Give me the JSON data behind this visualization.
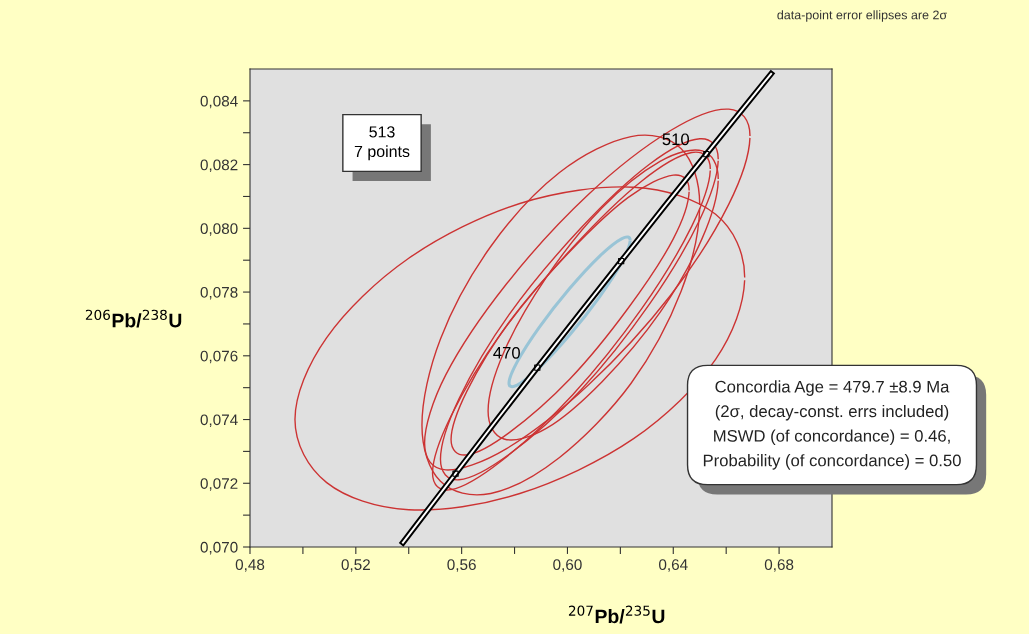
{
  "chart_data": {
    "type": "line",
    "xlabel": "$^{207}$Pb/$^{235}$U",
    "ylabel": "$^{206}$Pb/$^{238}$U",
    "xlim": [
      0.48,
      0.7
    ],
    "ylim": [
      0.07,
      0.085
    ],
    "xticks": [
      {
        "value": 0.48,
        "label": "0,48"
      },
      {
        "value": 0.5,
        "label": null
      },
      {
        "value": 0.52,
        "label": "0,52"
      },
      {
        "value": 0.54,
        "label": null
      },
      {
        "value": 0.56,
        "label": "0,56"
      },
      {
        "value": 0.58,
        "label": null
      },
      {
        "value": 0.6,
        "label": "0,60"
      },
      {
        "value": 0.62,
        "label": null
      },
      {
        "value": 0.64,
        "label": "0,64"
      },
      {
        "value": 0.66,
        "label": null
      },
      {
        "value": 0.68,
        "label": "0,68"
      }
    ],
    "yticks": [
      {
        "value": 0.07,
        "label": "0,070"
      },
      {
        "value": 0.071,
        "label": null
      },
      {
        "value": 0.072,
        "label": "0,072"
      },
      {
        "value": 0.073,
        "label": null
      },
      {
        "value": 0.074,
        "label": "0,074"
      },
      {
        "value": 0.075,
        "label": null
      },
      {
        "value": 0.076,
        "label": "0,076"
      },
      {
        "value": 0.077,
        "label": null
      },
      {
        "value": 0.078,
        "label": "0,078"
      },
      {
        "value": 0.079,
        "label": null
      },
      {
        "value": 0.08,
        "label": "0,080"
      },
      {
        "value": 0.081,
        "label": null
      },
      {
        "value": 0.082,
        "label": "0,082"
      },
      {
        "value": 0.083,
        "label": null
      },
      {
        "value": 0.084,
        "label": "0,084"
      }
    ],
    "series": [
      {
        "color": "#cc3333",
        "x": [
          0.667,
          0.656,
          0.625,
          0.582,
          0.54,
          0.509,
          0.497,
          0.509,
          0.54,
          0.582,
          0.625,
          0.656
        ],
        "values": [
          0.07846,
          0.08044,
          0.08129,
          0.08078,
          0.07906,
          0.07657,
          0.074,
          0.07202,
          0.07117,
          0.07168,
          0.0734,
          0.07589
        ]
      },
      {
        "color": "#cc3333",
        "x": [
          0.669,
          0.661,
          0.639,
          0.608,
          0.577,
          0.554,
          0.546,
          0.554,
          0.577,
          0.608,
          0.639,
          0.661
        ],
        "values": [
          0.0829,
          0.08374,
          0.08307,
          0.08107,
          0.07826,
          0.0754,
          0.07326,
          0.07242,
          0.07309,
          0.07509,
          0.0779,
          0.08076
        ]
      },
      {
        "color": "#cc3333",
        "x": [
          0.65,
          0.643,
          0.624,
          0.597,
          0.571,
          0.552,
          0.545,
          0.552,
          0.571,
          0.597,
          0.624,
          0.643
        ],
        "values": [
          0.08073,
          0.0825,
          0.08288,
          0.08175,
          0.07943,
          0.07653,
          0.07383,
          0.07206,
          0.07168,
          0.07281,
          0.07513,
          0.07803
        ]
      },
      {
        "color": "#cc3333",
        "x": [
          0.657,
          0.65,
          0.631,
          0.605,
          0.578,
          0.559,
          0.552,
          0.559,
          0.578,
          0.605,
          0.631,
          0.65
        ],
        "values": [
          0.08217,
          0.08281,
          0.08201,
          0.08,
          0.0773,
          0.07465,
          0.07275,
          0.07211,
          0.07291,
          0.07492,
          0.07762,
          0.08027
        ]
      },
      {
        "color": "#cc3333",
        "x": [
          0.646,
          0.64,
          0.623,
          0.601,
          0.578,
          0.562,
          0.556,
          0.562,
          0.578,
          0.601,
          0.623,
          0.64
        ],
        "values": [
          0.08119,
          0.08167,
          0.08097,
          0.07928,
          0.07706,
          0.07489,
          0.07337,
          0.07289,
          0.07359,
          0.07528,
          0.0775,
          0.07967
        ]
      },
      {
        "color": "#cc3333",
        "x": [
          0.654,
          0.647,
          0.628,
          0.602,
          0.575,
          0.556,
          0.549,
          0.556,
          0.575,
          0.602,
          0.628,
          0.647
        ],
        "values": [
          0.08186,
          0.08238,
          0.08148,
          0.0794,
          0.07671,
          0.07411,
          0.07232,
          0.0718,
          0.0727,
          0.07478,
          0.07747,
          0.08007
        ]
      },
      {
        "color": "#cc3333",
        "x": [
          0.657,
          0.651,
          0.635,
          0.613,
          0.592,
          0.576,
          0.57,
          0.576,
          0.592,
          0.613,
          0.635,
          0.651
        ],
        "values": [
          0.08155,
          0.08243,
          0.0821,
          0.08064,
          0.07846,
          0.07612,
          0.07427,
          0.07339,
          0.07372,
          0.07518,
          0.07736,
          0.0797
        ]
      },
      {
        "color": "#99c4d6",
        "x": [
          0.6237,
          0.6206,
          0.6122,
          0.6008,
          0.5894,
          0.581,
          0.5779,
          0.581,
          0.5894,
          0.6008,
          0.6122,
          0.6206
        ],
        "values": [
          0.07962,
          0.07968,
          0.07913,
          0.07811,
          0.0769,
          0.07581,
          0.07514,
          0.07508,
          0.07563,
          0.07665,
          0.07786,
          0.07895
        ]
      },
      {
        "color": "#000000",
        "x": [
          0.5378,
          0.5424,
          0.5577,
          0.5731,
          0.5886,
          0.6044,
          0.6203,
          0.6363,
          0.6525,
          0.6688,
          0.677
        ],
        "values": [
          0.07014,
          0.07064,
          0.0723,
          0.07397,
          0.07563,
          0.0773,
          0.07897,
          0.08065,
          0.08233,
          0.08401,
          0.08485
        ]
      },
      {
        "type": "scatter",
        "color": "#000000",
        "marker": "square",
        "x": [
          0.5577,
          0.5886,
          0.6203,
          0.6525
        ],
        "values": [
          0.0723,
          0.07563,
          0.07897,
          0.08233
        ]
      }
    ],
    "annotations": [
      "data-point error ellipses are 2σ",
      "513\n7 points",
      "Concordia Age = 479.7 ±8.9 Ma\n(2σ, decay-const. errs included)\nMSWD (of concordance) = 0.46,\nProbability (of concordance) = 0.50",
      {
        "text": "470",
        "x": 0.5886,
        "y": 0.07563
      },
      {
        "text": "510",
        "x": 0.6525,
        "y": 0.08233
      }
    ]
  }
}
